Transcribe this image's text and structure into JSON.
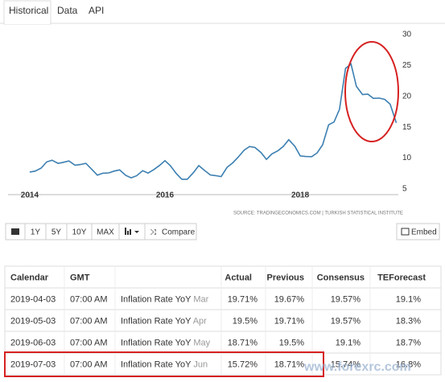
{
  "tabs": [
    "Historical",
    "Data",
    "API"
  ],
  "chart_data": {
    "type": "line",
    "x": [
      2014.0,
      2014.08,
      2014.17,
      2014.25,
      2014.33,
      2014.42,
      2014.5,
      2014.58,
      2014.67,
      2014.75,
      2014.83,
      2014.92,
      2015.0,
      2015.08,
      2015.17,
      2015.25,
      2015.33,
      2015.42,
      2015.5,
      2015.58,
      2015.67,
      2015.75,
      2015.83,
      2015.92,
      2016.0,
      2016.08,
      2016.17,
      2016.25,
      2016.33,
      2016.42,
      2016.5,
      2016.58,
      2016.67,
      2016.75,
      2016.83,
      2016.92,
      2017.0,
      2017.08,
      2017.17,
      2017.25,
      2017.33,
      2017.42,
      2017.5,
      2017.58,
      2017.67,
      2017.75,
      2017.83,
      2017.92,
      2018.0,
      2018.08,
      2018.17,
      2018.25,
      2018.33,
      2018.42,
      2018.5,
      2018.58,
      2018.67,
      2018.75,
      2018.83,
      2018.92,
      2019.0,
      2019.08,
      2019.17,
      2019.25,
      2019.33,
      2019.42
    ],
    "series": [
      {
        "name": "Inflation Rate YoY",
        "color": "#3c7fb1",
        "values": [
          7.75,
          7.89,
          8.39,
          9.38,
          9.66,
          9.16,
          9.32,
          9.54,
          8.86,
          8.96,
          9.15,
          8.17,
          7.24,
          7.55,
          7.61,
          7.91,
          8.09,
          7.2,
          6.81,
          7.14,
          7.95,
          7.58,
          8.1,
          8.81,
          9.58,
          8.78,
          7.46,
          6.57,
          6.58,
          7.64,
          8.79,
          8.05,
          7.28,
          7.16,
          7.0,
          8.53,
          9.22,
          10.13,
          11.29,
          11.87,
          11.72,
          10.9,
          9.79,
          10.68,
          11.2,
          11.9,
          12.98,
          11.92,
          10.35,
          10.26,
          10.23,
          10.85,
          12.15,
          15.39,
          15.85,
          17.9,
          24.52,
          25.24,
          21.62,
          20.3,
          20.35,
          19.67,
          19.71,
          19.5,
          18.71,
          15.72
        ]
      }
    ],
    "xlim": [
      2013.68,
      2019.45
    ],
    "xticks": [
      2014,
      2016,
      2018
    ],
    "ylim": [
      5,
      30
    ],
    "yticks": [
      5,
      10,
      15,
      20,
      25,
      30
    ],
    "source": "SOURCE: TRADINGECONOMICS.COM | TURKISH STATISTICAL INSTITUTE"
  },
  "toolbar": [
    "1Y",
    "5Y",
    "10Y",
    "MAX",
    "Compare",
    "Embed"
  ],
  "table": {
    "header": [
      "Calendar",
      "GMT",
      "Actual",
      "Previous",
      "Consensus",
      "TEForecast"
    ],
    "rows": [
      [
        "2019-04-03",
        "07:00 AM",
        "Inflation Rate YoY",
        "Mar",
        "19.71%",
        "19.67%",
        "19.57%",
        "19.1%"
      ],
      [
        "2019-05-03",
        "07:00 AM",
        "Inflation Rate YoY",
        "Apr",
        "19.5%",
        "19.71%",
        "19.57%",
        "18.3%"
      ],
      [
        "2019-06-03",
        "07:00 AM",
        "Inflation Rate YoY",
        "May",
        "18.71%",
        "19.5%",
        "19.1%",
        "18.7%"
      ],
      [
        "2019-07-03",
        "07:00 AM",
        "Inflation Rate YoY",
        "Jun",
        "15.72%",
        "18.71%",
        "15.74%",
        "16.8%"
      ]
    ]
  },
  "watermark": "www.forexrc.com"
}
